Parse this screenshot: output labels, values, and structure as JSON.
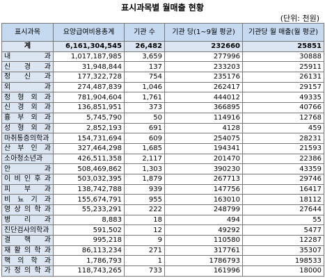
{
  "title": "표시과목별 월매출 현황",
  "unit": "(단위: 천원)",
  "table": {
    "header": [
      "표시과목",
      "요양급여비용총계",
      "기관 수",
      "기관 당(1~9월 평균)",
      "기관당 월 매출(월 평균)"
    ],
    "rows": [
      [
        "계",
        "6,161,304,545",
        "26,482",
        "232660",
        "25851"
      ],
      [
        "내 과",
        "1,017,187,985",
        "3,659",
        "277996",
        "30888"
      ],
      [
        "신 경 과",
        "31,948,844",
        "137",
        "233203",
        "25911"
      ],
      [
        "정 신 과",
        "177,322,728",
        "754",
        "235176",
        "26131"
      ],
      [
        "외 과",
        "274,487,839",
        "1,046",
        "262417",
        "29157"
      ],
      [
        "정 형 외 과",
        "781,904,604",
        "1,761",
        "444012",
        "49335"
      ],
      [
        "신 경 외 과",
        "136,851,951",
        "373",
        "366895",
        "40766"
      ],
      [
        "흉 부 외 과",
        "5,745,790",
        "50",
        "114916",
        "12768"
      ],
      [
        "성 형 외 과",
        "2,852,193",
        "691",
        "4128",
        "459"
      ],
      [
        "마취통증의학과",
        "154,731,694",
        "609",
        "254075",
        "28231"
      ],
      [
        "산 부 인 과",
        "327,464,298",
        "1,685",
        "194341",
        "21593"
      ],
      [
        "소아청소년과",
        "426,511,358",
        "2,117",
        "201470",
        "22386"
      ],
      [
        "안 과",
        "508,469,862",
        "1,303",
        "390230",
        "43359"
      ],
      [
        "이 비 인 후 과",
        "503,032,395",
        "1,879",
        "267713",
        "29746"
      ],
      [
        "피 부 과",
        "138,742,788",
        "939",
        "147756",
        "16417"
      ],
      [
        "비 뇨 기 과",
        "155,674,791",
        "955",
        "163010",
        "18112"
      ],
      [
        "영 상 의 학 과",
        "55,233,291",
        "222",
        "248799",
        "27644"
      ],
      [
        "병 리 과",
        "8,883",
        "18",
        "494",
        "55"
      ],
      [
        "진단검사의학과",
        "591,502",
        "12",
        "49292",
        "5477"
      ],
      [
        "결 핵 과",
        "995,218",
        "9",
        "110580",
        "12287"
      ],
      [
        "재 활 의 학 과",
        "86,113,234",
        "271",
        "317761",
        "35307"
      ],
      [
        "핵 의 학 과",
        "1,786,793",
        "1",
        "1786793",
        "198533"
      ],
      [
        "가 정 의 학 과",
        "118,743,265",
        "733",
        "161996",
        "18000"
      ]
    ]
  }
}
